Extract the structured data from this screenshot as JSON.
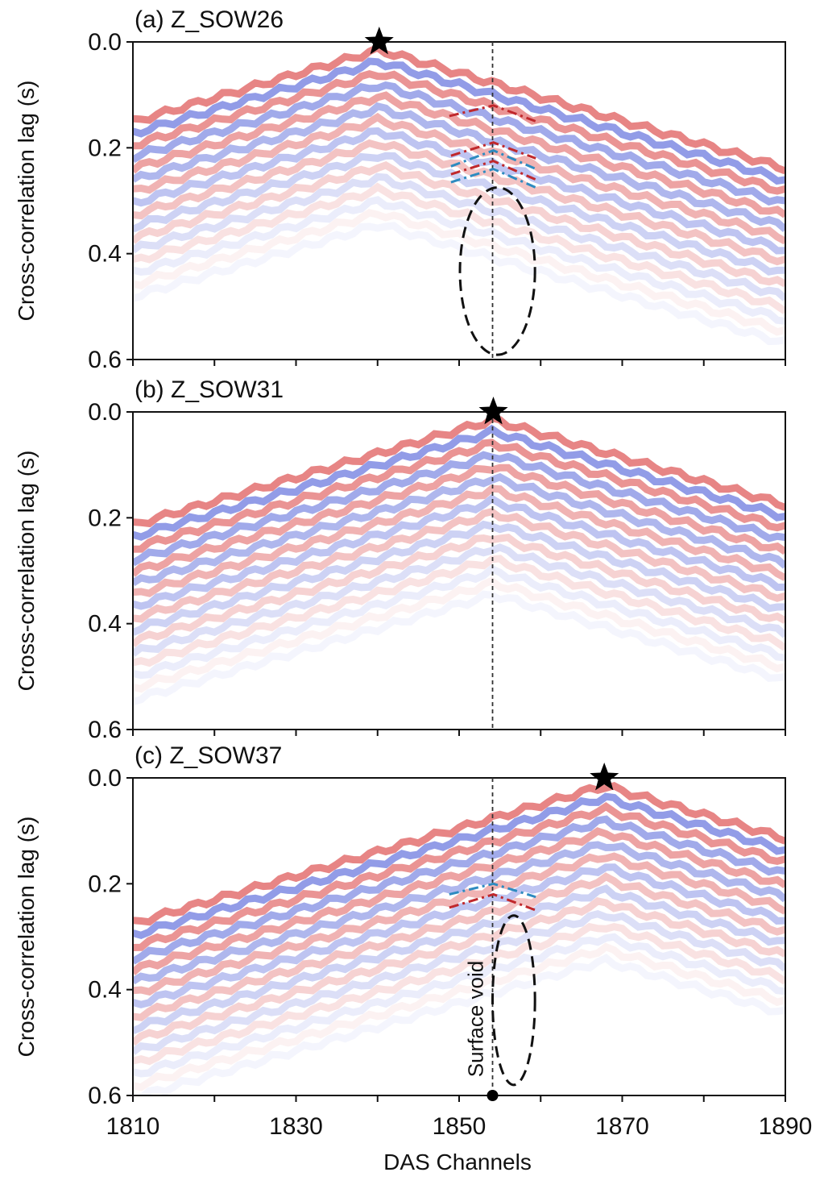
{
  "chart_data": [
    {
      "type": "heatmap",
      "title": "(a) Z_SOW26",
      "ylabel": "Cross-correlation lag (s)",
      "xlim": [
        1810,
        1890
      ],
      "ylim": [
        0,
        0.6
      ],
      "y_inverted": true,
      "yticks": [
        {
          "value": 0,
          "label": "0.0"
        },
        0.2,
        0.4,
        0.6
      ],
      "xticks": [
        1810,
        1830,
        1850,
        1870,
        1890
      ],
      "xminor": [
        1820,
        1840,
        1860,
        1880
      ],
      "source": {
        "x": 1840.2,
        "y": 0
      },
      "void_line": {
        "x": 1854.1
      },
      "ellipse": {
        "cx": 1854.7,
        "cy": 0.433,
        "rx": 4.6,
        "ry": 0.158
      },
      "picks": [
        {
          "color": "#c0282c",
          "points": [
            [
              1848.8,
              0.14
            ],
            [
              1854.2,
              0.12
            ],
            [
              1859.4,
              0.15
            ]
          ]
        },
        {
          "color": "#c0282c",
          "points": [
            [
              1849,
              0.215
            ],
            [
              1854.2,
              0.19
            ],
            [
              1859.4,
              0.22
            ]
          ]
        },
        {
          "color": "#2e8bc0",
          "points": [
            [
              1849,
              0.235
            ],
            [
              1854.2,
              0.205
            ],
            [
              1859.4,
              0.24
            ]
          ]
        },
        {
          "color": "#c0282c",
          "points": [
            [
              1849,
              0.25
            ],
            [
              1854.2,
              0.225
            ],
            [
              1859.4,
              0.26
            ]
          ]
        },
        {
          "color": "#2e8bc0",
          "points": [
            [
              1849,
              0.265
            ],
            [
              1854.2,
              0.24
            ],
            [
              1859.4,
              0.275
            ]
          ]
        }
      ]
    },
    {
      "type": "heatmap",
      "title": "(b) Z_SOW31",
      "ylabel": "Cross-correlation lag (s)",
      "xlim": [
        1810,
        1890
      ],
      "ylim": [
        0,
        0.6
      ],
      "y_inverted": true,
      "yticks": [
        {
          "value": 0,
          "label": "0.0"
        },
        0.2,
        0.4,
        0.6
      ],
      "xticks": [
        1810,
        1830,
        1850,
        1870,
        1890
      ],
      "xminor": [
        1820,
        1840,
        1860,
        1880
      ],
      "source": {
        "x": 1854.2,
        "y": 0
      },
      "void_line": {
        "x": 1854.1
      }
    },
    {
      "type": "heatmap",
      "title": "(c) Z_SOW37",
      "ylabel": "Cross-correlation lag (s)",
      "xlabel": "DAS Channels",
      "xlim": [
        1810,
        1890
      ],
      "ylim": [
        0,
        0.6
      ],
      "y_inverted": true,
      "yticks": [
        {
          "value": 0,
          "label": "0.0"
        },
        0.2,
        0.4,
        0.6
      ],
      "xticks": [
        1810,
        1830,
        1850,
        1870,
        1890
      ],
      "xminor": [
        1820,
        1840,
        1860,
        1880
      ],
      "show_xtick_labels": true,
      "source": {
        "x": 1867.8,
        "y": 0
      },
      "void_line": {
        "x": 1854.1
      },
      "ellipse": {
        "cx": 1856.7,
        "cy": 0.42,
        "rx": 2.6,
        "ry": 0.16
      },
      "picks": [
        {
          "color": "#2e8bc0",
          "points": [
            [
              1848.8,
              0.22
            ],
            [
              1854.2,
              0.2
            ],
            [
              1859.4,
              0.225
            ]
          ]
        },
        {
          "color": "#c0282c",
          "points": [
            [
              1848.8,
              0.245
            ],
            [
              1854.2,
              0.22
            ],
            [
              1859.4,
              0.25
            ]
          ]
        }
      ],
      "annotation": "Surface void",
      "marker": {
        "x": 1854.1,
        "y": 0.6
      }
    }
  ]
}
